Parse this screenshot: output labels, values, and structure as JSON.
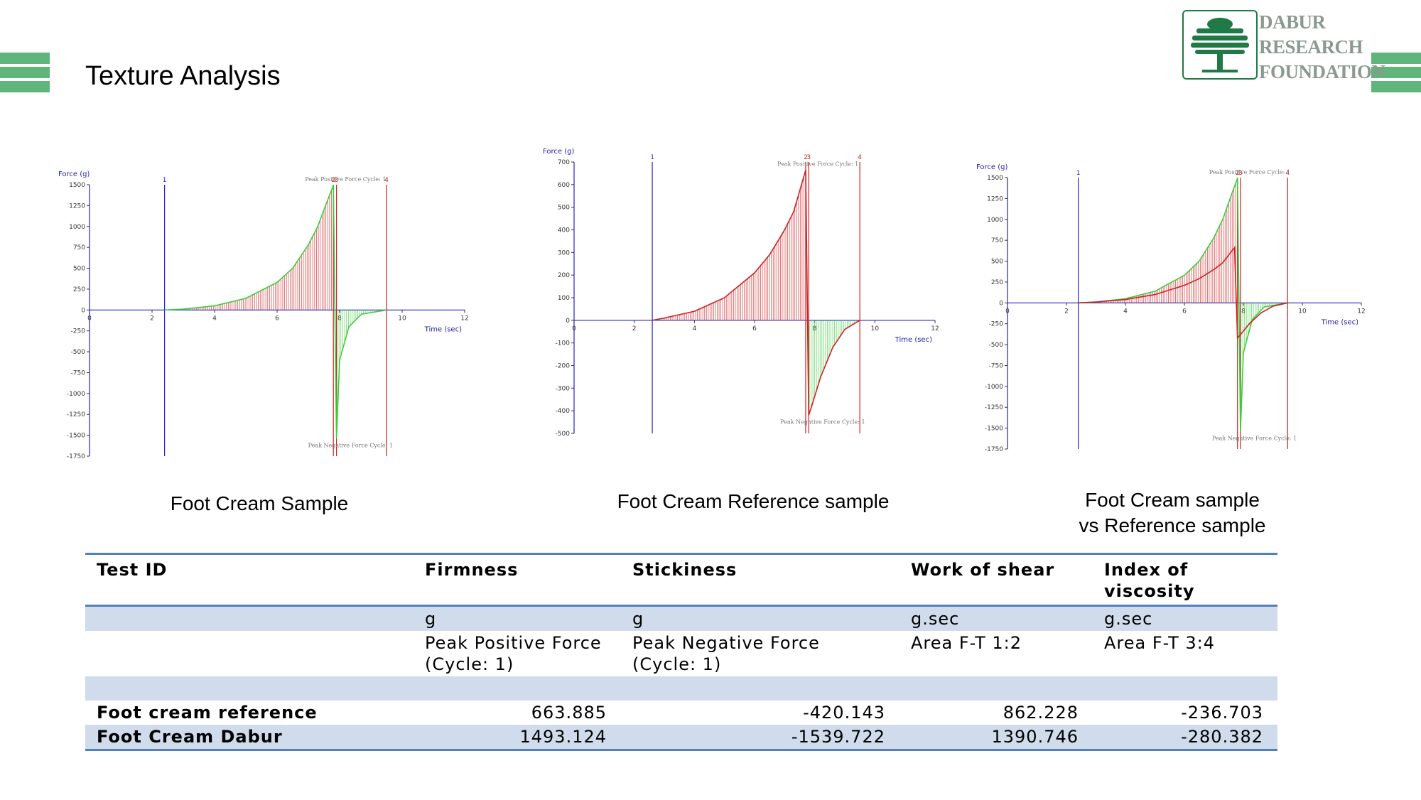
{
  "slide": {
    "title": "Texture Analysis"
  },
  "logo": {
    "line1": "DABUR",
    "line2": "RESEARCH",
    "line3": "FOUNDATION"
  },
  "captions": {
    "chart1": "Foot Cream Sample",
    "chart2": "Foot Cream Reference sample",
    "chart3_line1": "Foot Cream sample",
    "chart3_line2": "vs Reference sample"
  },
  "colors": {
    "accent_green": "#5fb57a",
    "sample_curve": "#3dcc3d",
    "reference_curve": "#cc2222",
    "axis": "#2222cc",
    "table_rule": "#4f81bd",
    "table_shade": "#d0dcec"
  },
  "chart_data": [
    {
      "type": "line",
      "ylabel": "Force (g)",
      "xlabel": "Time (sec)",
      "xlim": [
        0,
        12
      ],
      "ylim": [
        -1750,
        1500
      ],
      "xticks": [
        0,
        2,
        4,
        6,
        8,
        10,
        12
      ],
      "yticks": [
        1500,
        1250,
        1000,
        750,
        500,
        250,
        0,
        -250,
        -500,
        -750,
        -1000,
        -1250,
        -1500,
        -1750
      ],
      "markers": [
        {
          "label": "1",
          "x": 2.4
        },
        {
          "label": "2",
          "x": 7.8
        },
        {
          "label": "3",
          "x": 7.9
        },
        {
          "label": "4",
          "x": 9.5
        }
      ],
      "annotations": [
        {
          "text": "Peak Positive Force Cycle: 1",
          "x": 7.8,
          "y": 1493
        },
        {
          "text": "Peak Negative Force Cycle: 1",
          "x": 7.9,
          "y": -1540
        }
      ],
      "series": [
        {
          "x": [
            2.4,
            3,
            4,
            5,
            6,
            6.5,
            7,
            7.3,
            7.6,
            7.8,
            7.9,
            8.0,
            8.3,
            8.7,
            9.5
          ],
          "y": [
            0,
            10,
            50,
            140,
            330,
            500,
            780,
            1000,
            1300,
            1493,
            -1540,
            -600,
            -200,
            -50,
            0
          ]
        }
      ]
    },
    {
      "type": "line",
      "ylabel": "Force (g)",
      "xlabel": "Time (sec)",
      "xlim": [
        0,
        12
      ],
      "ylim": [
        -500,
        700
      ],
      "xticks": [
        0,
        2,
        4,
        6,
        8,
        10,
        12
      ],
      "yticks": [
        700,
        600,
        500,
        400,
        300,
        200,
        100,
        0,
        -100,
        -200,
        -300,
        -400,
        -500
      ],
      "markers": [
        {
          "label": "1",
          "x": 2.6
        },
        {
          "label": "2",
          "x": 7.7
        },
        {
          "label": "3",
          "x": 7.8
        },
        {
          "label": "4",
          "x": 9.5
        }
      ],
      "annotations": [
        {
          "text": "Peak Positive Force Cycle: 1",
          "x": 7.7,
          "y": 664
        },
        {
          "text": "Peak Negative Force Cycle: 1",
          "x": 7.8,
          "y": -420
        }
      ],
      "series": [
        {
          "x": [
            2.6,
            3,
            4,
            5,
            6,
            6.5,
            7,
            7.3,
            7.7,
            7.8,
            7.9,
            8.2,
            8.6,
            9.0,
            9.5
          ],
          "y": [
            0,
            10,
            40,
            100,
            210,
            290,
            400,
            480,
            664,
            -420,
            -380,
            -250,
            -120,
            -40,
            0
          ]
        }
      ]
    },
    {
      "type": "line",
      "ylabel": "Force (g)",
      "xlabel": "Time (sec)",
      "xlim": [
        0,
        12
      ],
      "ylim": [
        -1750,
        1500
      ],
      "xticks": [
        0,
        2,
        4,
        6,
        8,
        10,
        12
      ],
      "yticks": [
        1500,
        1250,
        1000,
        750,
        500,
        250,
        0,
        -250,
        -500,
        -750,
        -1000,
        -1250,
        -1500,
        -1750
      ],
      "markers": [
        {
          "label": "1",
          "x": 2.4
        },
        {
          "label": "2",
          "x": 7.8
        },
        {
          "label": "3",
          "x": 7.9
        },
        {
          "label": "4",
          "x": 9.5
        }
      ],
      "annotations": [
        {
          "text": "Peak Positive Force Cycle: 1",
          "x": 7.8,
          "y": 1493
        },
        {
          "text": "Peak Negative Force Cycle: 1",
          "x": 7.9,
          "y": -1540
        }
      ],
      "series": [
        {
          "x": [
            2.4,
            3,
            4,
            5,
            6,
            6.5,
            7,
            7.3,
            7.6,
            7.8,
            7.9,
            8.0,
            8.3,
            8.7,
            9.5
          ],
          "y": [
            0,
            10,
            50,
            140,
            330,
            500,
            780,
            1000,
            1300,
            1493,
            -1540,
            -600,
            -200,
            -50,
            0
          ]
        },
        {
          "x": [
            2.4,
            3,
            4,
            5,
            6,
            6.5,
            7,
            7.3,
            7.7,
            7.8,
            7.9,
            8.2,
            8.6,
            9.0,
            9.5
          ],
          "y": [
            0,
            10,
            40,
            100,
            210,
            290,
            400,
            480,
            664,
            -420,
            -380,
            -250,
            -120,
            -40,
            0
          ]
        }
      ]
    }
  ],
  "table": {
    "headers": [
      "Test ID",
      "Firmness",
      "Stickiness",
      "Work of shear",
      "Index of viscosity"
    ],
    "units": [
      "",
      "g",
      "g",
      "g.sec",
      "g.sec"
    ],
    "descriptions": [
      "",
      "Peak Positive Force (Cycle: 1)",
      "Peak Negative Force (Cycle: 1)",
      "Area F-T 1:2",
      "Area F-T 3:4"
    ],
    "rows": [
      [
        "Foot cream reference",
        "663.885",
        "-420.143",
        "862.228",
        "-236.703"
      ],
      [
        "Foot Cream Dabur",
        "1493.124",
        "-1539.722",
        "1390.746",
        "-280.382"
      ]
    ]
  }
}
